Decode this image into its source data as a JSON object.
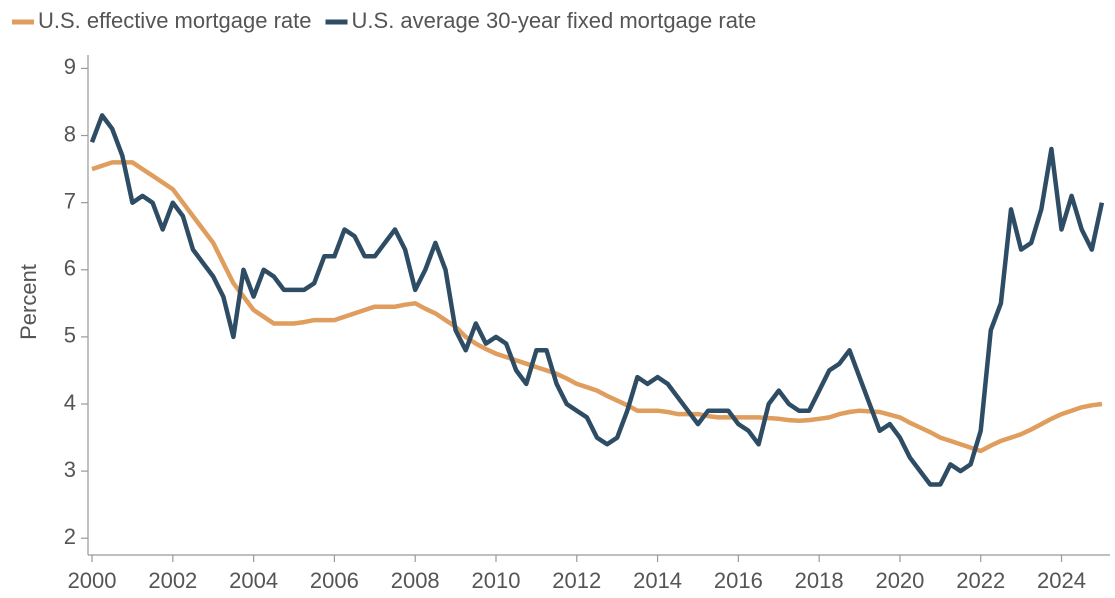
{
  "chart_data": {
    "type": "line",
    "y_label": "Percent",
    "x": [
      2000,
      2000.25,
      2000.5,
      2000.75,
      2001,
      2001.25,
      2001.5,
      2001.75,
      2002,
      2002.25,
      2002.5,
      2002.75,
      2003,
      2003.25,
      2003.5,
      2003.75,
      2004,
      2004.25,
      2004.5,
      2004.75,
      2005,
      2005.25,
      2005.5,
      2005.75,
      2006,
      2006.25,
      2006.5,
      2006.75,
      2007,
      2007.25,
      2007.5,
      2007.75,
      2008,
      2008.25,
      2008.5,
      2008.75,
      2009,
      2009.25,
      2009.5,
      2009.75,
      2010,
      2010.25,
      2010.5,
      2010.75,
      2011,
      2011.25,
      2011.5,
      2011.75,
      2012,
      2012.25,
      2012.5,
      2012.75,
      2013,
      2013.25,
      2013.5,
      2013.75,
      2014,
      2014.25,
      2014.5,
      2014.75,
      2015,
      2015.25,
      2015.5,
      2015.75,
      2016,
      2016.25,
      2016.5,
      2016.75,
      2017,
      2017.25,
      2017.5,
      2017.75,
      2018,
      2018.25,
      2018.5,
      2018.75,
      2019,
      2019.25,
      2019.5,
      2019.75,
      2020,
      2020.25,
      2020.5,
      2020.75,
      2021,
      2021.25,
      2021.5,
      2021.75,
      2022,
      2022.25,
      2022.5,
      2022.75,
      2023,
      2023.25,
      2023.5,
      2023.75,
      2024,
      2024.25,
      2024.5,
      2024.75,
      2025
    ],
    "series": [
      {
        "name": "U.S. effective mortgage rate",
        "color": "#df9d5e",
        "values": [
          7.5,
          7.55,
          7.6,
          7.6,
          7.6,
          7.5,
          7.4,
          7.3,
          7.2,
          7.0,
          6.8,
          6.6,
          6.4,
          6.1,
          5.8,
          5.6,
          5.4,
          5.3,
          5.2,
          5.2,
          5.2,
          5.22,
          5.25,
          5.25,
          5.25,
          5.3,
          5.35,
          5.4,
          5.45,
          5.45,
          5.45,
          5.48,
          5.5,
          5.42,
          5.35,
          5.25,
          5.15,
          5.0,
          4.9,
          4.82,
          4.75,
          4.7,
          4.65,
          4.6,
          4.55,
          4.5,
          4.45,
          4.38,
          4.3,
          4.25,
          4.2,
          4.12,
          4.05,
          3.98,
          3.9,
          3.9,
          3.9,
          3.88,
          3.85,
          3.85,
          3.85,
          3.82,
          3.8,
          3.8,
          3.8,
          3.8,
          3.8,
          3.79,
          3.78,
          3.76,
          3.75,
          3.76,
          3.78,
          3.8,
          3.85,
          3.88,
          3.9,
          3.89,
          3.88,
          3.84,
          3.8,
          3.72,
          3.65,
          3.58,
          3.5,
          3.45,
          3.4,
          3.35,
          3.3,
          3.38,
          3.45,
          3.5,
          3.55,
          3.62,
          3.7,
          3.78,
          3.85,
          3.9,
          3.95,
          3.98,
          4.0
        ]
      },
      {
        "name": "U.S. average 30-year fixed mortgage rate",
        "color": "#2e4d65",
        "values": [
          7.9,
          8.3,
          8.1,
          7.7,
          7.0,
          7.1,
          7.0,
          6.6,
          7.0,
          6.8,
          6.3,
          6.1,
          5.9,
          5.6,
          5.0,
          6.0,
          5.6,
          6.0,
          5.9,
          5.7,
          5.7,
          5.7,
          5.8,
          6.2,
          6.2,
          6.6,
          6.5,
          6.2,
          6.2,
          6.4,
          6.6,
          6.3,
          5.7,
          6.0,
          6.4,
          6.0,
          5.1,
          4.8,
          5.2,
          4.9,
          5.0,
          4.9,
          4.5,
          4.3,
          4.8,
          4.8,
          4.3,
          4.0,
          3.9,
          3.8,
          3.5,
          3.4,
          3.5,
          3.9,
          4.4,
          4.3,
          4.4,
          4.3,
          4.1,
          3.9,
          3.7,
          3.9,
          3.9,
          3.9,
          3.7,
          3.6,
          3.4,
          4.0,
          4.2,
          4.0,
          3.9,
          3.9,
          4.2,
          4.5,
          4.6,
          4.8,
          4.4,
          4.0,
          3.6,
          3.7,
          3.5,
          3.2,
          3.0,
          2.8,
          2.8,
          3.1,
          3.0,
          3.1,
          3.6,
          5.1,
          5.5,
          6.9,
          6.3,
          6.4,
          6.9,
          7.8,
          6.6,
          7.1,
          6.6,
          6.3,
          7.0
        ]
      }
    ],
    "xlim": [
      1999.9,
      2025.2
    ],
    "xticks": [
      2000,
      2002,
      2004,
      2006,
      2008,
      2010,
      2012,
      2014,
      2016,
      2018,
      2020,
      2022,
      2024
    ],
    "ylim": [
      1.75,
      9.2
    ],
    "yticks": [
      2,
      3,
      4,
      5,
      6,
      7,
      8,
      9
    ],
    "legend": "top-left"
  }
}
